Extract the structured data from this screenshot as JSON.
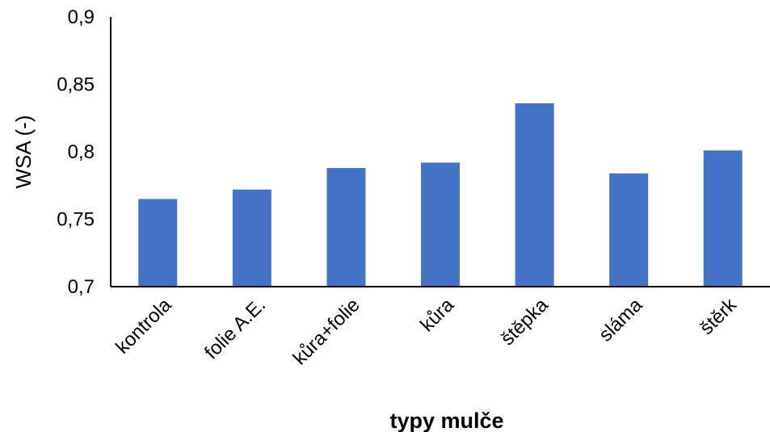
{
  "chart_data": {
    "type": "bar",
    "title": "",
    "xlabel": "typy mulče",
    "ylabel": "WSA (-)",
    "categories": [
      "kontrola",
      "folie A.E.",
      "kůra+folie",
      "kůra",
      "štěpka",
      "sláma",
      "štěrk"
    ],
    "values": [
      0.765,
      0.772,
      0.788,
      0.792,
      0.836,
      0.784,
      0.801
    ],
    "ylim": [
      0.7,
      0.9
    ],
    "yticks": [
      "0,7",
      "0,75",
      "0,8",
      "0,85",
      "0,9"
    ],
    "grid": false,
    "legend": "none",
    "bar_color": "#4472C4",
    "axis_color": "#000000"
  }
}
